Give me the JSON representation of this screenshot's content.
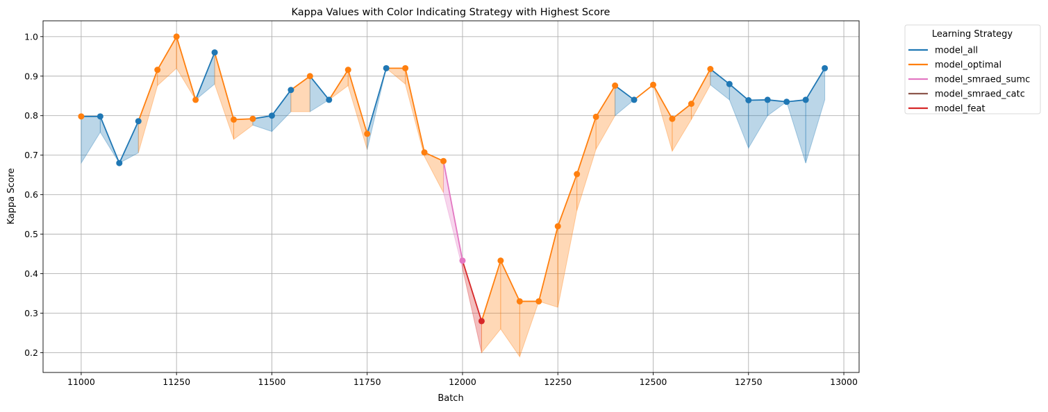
{
  "chart_data": {
    "type": "line",
    "title": "Kappa Values with Color Indicating Strategy with Highest Score",
    "xlabel": "Batch",
    "ylabel": "Kappa Score",
    "xlim": [
      10900,
      13040
    ],
    "ylim": [
      0.15,
      1.04
    ],
    "xticks": [
      11000,
      11250,
      11500,
      11750,
      12000,
      12250,
      12500,
      12750,
      13000
    ],
    "yticks": [
      0.2,
      0.3,
      0.4,
      0.5,
      0.6,
      0.7,
      0.8,
      0.9,
      1.0
    ],
    "grid": true,
    "legend": {
      "title": "Learning Strategy",
      "placement": "outside-top-right",
      "entries": [
        {
          "name": "model_all",
          "color": "#1f77b4"
        },
        {
          "name": "model_optimal",
          "color": "#ff7f0e"
        },
        {
          "name": "model_smraed_sumc",
          "color": "#e377c2"
        },
        {
          "name": "model_smraed_catc",
          "color": "#8c564b"
        },
        {
          "name": "model_feat",
          "color": "#d62728"
        }
      ]
    },
    "points": [
      {
        "x": 11000,
        "max": 0.798,
        "min": 0.68,
        "best": "model_optimal"
      },
      {
        "x": 11050,
        "max": 0.798,
        "min": 0.758,
        "best": "model_all"
      },
      {
        "x": 11100,
        "max": 0.68,
        "min": 0.68,
        "best": "model_all"
      },
      {
        "x": 11150,
        "max": 0.786,
        "min": 0.706,
        "best": "model_all"
      },
      {
        "x": 11200,
        "max": 0.916,
        "min": 0.876,
        "best": "model_optimal"
      },
      {
        "x": 11250,
        "max": 1.0,
        "min": 0.92,
        "best": "model_optimal"
      },
      {
        "x": 11300,
        "max": 0.84,
        "min": 0.84,
        "best": "model_optimal"
      },
      {
        "x": 11350,
        "max": 0.96,
        "min": 0.88,
        "best": "model_all"
      },
      {
        "x": 11400,
        "max": 0.79,
        "min": 0.74,
        "best": "model_optimal"
      },
      {
        "x": 11450,
        "max": 0.792,
        "min": 0.776,
        "best": "model_optimal"
      },
      {
        "x": 11500,
        "max": 0.8,
        "min": 0.76,
        "best": "model_all"
      },
      {
        "x": 11550,
        "max": 0.865,
        "min": 0.81,
        "best": "model_all"
      },
      {
        "x": 11600,
        "max": 0.9,
        "min": 0.81,
        "best": "model_optimal"
      },
      {
        "x": 11650,
        "max": 0.84,
        "min": 0.84,
        "best": "model_all"
      },
      {
        "x": 11700,
        "max": 0.916,
        "min": 0.876,
        "best": "model_optimal"
      },
      {
        "x": 11750,
        "max": 0.754,
        "min": 0.714,
        "best": "model_optimal"
      },
      {
        "x": 11800,
        "max": 0.92,
        "min": 0.92,
        "best": "model_all"
      },
      {
        "x": 11850,
        "max": 0.92,
        "min": 0.88,
        "best": "model_optimal"
      },
      {
        "x": 11900,
        "max": 0.707,
        "min": 0.697,
        "best": "model_optimal"
      },
      {
        "x": 11950,
        "max": 0.685,
        "min": 0.605,
        "best": "model_optimal"
      },
      {
        "x": 12000,
        "max": 0.433,
        "min": 0.413,
        "best": "model_smraed_sumc"
      },
      {
        "x": 12050,
        "max": 0.28,
        "min": 0.2,
        "best": "model_feat"
      },
      {
        "x": 12100,
        "max": 0.433,
        "min": 0.26,
        "best": "model_optimal"
      },
      {
        "x": 12150,
        "max": 0.33,
        "min": 0.19,
        "best": "model_optimal"
      },
      {
        "x": 12200,
        "max": 0.33,
        "min": 0.33,
        "best": "model_optimal"
      },
      {
        "x": 12250,
        "max": 0.52,
        "min": 0.315,
        "best": "model_optimal"
      },
      {
        "x": 12300,
        "max": 0.652,
        "min": 0.56,
        "best": "model_optimal"
      },
      {
        "x": 12350,
        "max": 0.797,
        "min": 0.715,
        "best": "model_optimal"
      },
      {
        "x": 12400,
        "max": 0.876,
        "min": 0.8,
        "best": "model_optimal"
      },
      {
        "x": 12450,
        "max": 0.84,
        "min": 0.84,
        "best": "model_all"
      },
      {
        "x": 12500,
        "max": 0.878,
        "min": 0.878,
        "best": "model_optimal"
      },
      {
        "x": 12550,
        "max": 0.792,
        "min": 0.71,
        "best": "model_optimal"
      },
      {
        "x": 12600,
        "max": 0.83,
        "min": 0.79,
        "best": "model_optimal"
      },
      {
        "x": 12650,
        "max": 0.918,
        "min": 0.878,
        "best": "model_optimal"
      },
      {
        "x": 12700,
        "max": 0.88,
        "min": 0.84,
        "best": "model_all"
      },
      {
        "x": 12750,
        "max": 0.839,
        "min": 0.718,
        "best": "model_all"
      },
      {
        "x": 12800,
        "max": 0.84,
        "min": 0.8,
        "best": "model_all"
      },
      {
        "x": 12850,
        "max": 0.835,
        "min": 0.835,
        "best": "model_all"
      },
      {
        "x": 12900,
        "max": 0.84,
        "min": 0.68,
        "best": "model_all"
      },
      {
        "x": 12950,
        "max": 0.92,
        "min": 0.84,
        "best": "model_all"
      }
    ]
  }
}
